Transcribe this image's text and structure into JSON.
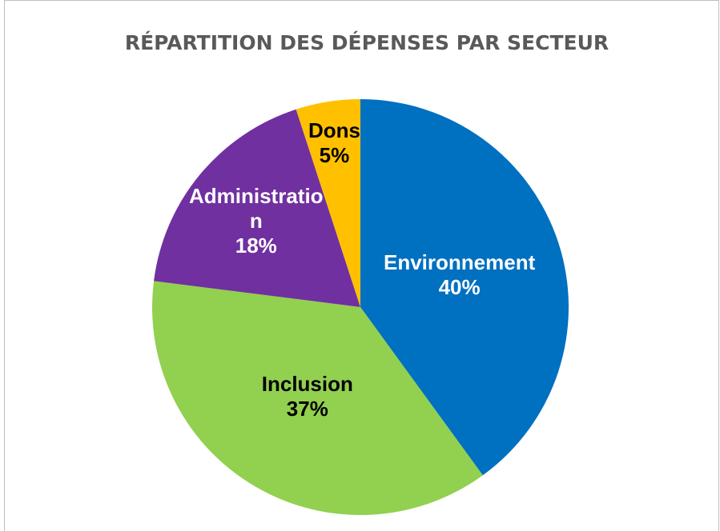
{
  "chart_data": {
    "type": "pie",
    "title": "RÉPARTITION DES DÉPENSES PAR SECTEUR",
    "categories": [
      "Environnement",
      "Inclusion",
      "Administration",
      "Dons"
    ],
    "values": [
      40,
      37,
      18,
      5
    ],
    "value_labels": [
      "40%",
      "37%",
      "18%",
      "5%"
    ],
    "colors": [
      "#0070c0",
      "#92d050",
      "#7030a0",
      "#ffc000"
    ]
  }
}
